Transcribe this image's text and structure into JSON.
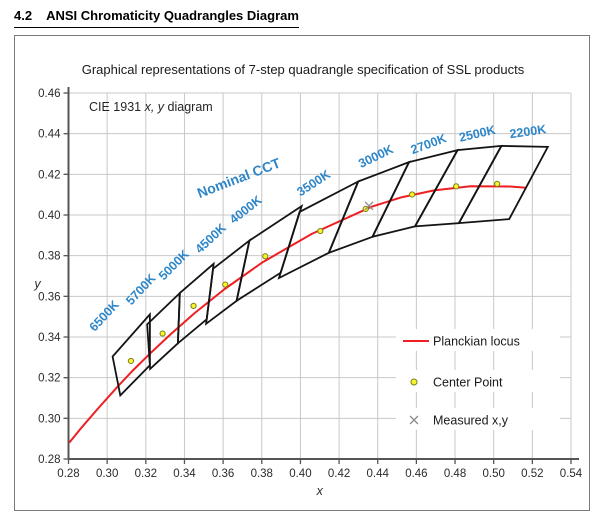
{
  "page": {
    "heading_number": "4.2",
    "heading_title": "ANSI Chromaticity Quadrangles Diagram"
  },
  "chart_data": {
    "type": "scatter",
    "title": "Graphical representations of 7-step quadrangle specification of SSL products",
    "inner_label": "CIE 1931 x, y diagram",
    "xlabel": "x",
    "ylabel": "y",
    "xlim": [
      0.28,
      0.54
    ],
    "ylim": [
      0.28,
      0.46
    ],
    "grid": true,
    "xticks": [
      "0.28",
      "0.30",
      "0.32",
      "0.34",
      "0.36",
      "0.38",
      "0.40",
      "0.42",
      "0.44",
      "0.46",
      "0.48",
      "0.50",
      "0.52",
      "0.54"
    ],
    "yticks": [
      "0.28",
      "0.30",
      "0.32",
      "0.34",
      "0.36",
      "0.38",
      "0.40",
      "0.42",
      "0.44",
      "0.46"
    ],
    "colors": {
      "cct_label_blue": "#2e86c9",
      "locus_red": "#ee1f22",
      "quadrangle_stroke": "#141414",
      "grid": "#c8c8c8",
      "axis": "#555555",
      "tick_text": "#2b2b2b",
      "center_fill": "#f7f72a",
      "center_stroke": "#7d7d1d",
      "measured_gray": "#8c8c8c",
      "title_text": "#1a1a1a"
    },
    "nominal_cct_label": {
      "text": "Nominal CCT",
      "x": 0.369,
      "y": 0.416,
      "rotation": -21
    },
    "quadrangles": [
      {
        "cct": "6500K",
        "vertices": [
          [
            0.3221,
            0.3511
          ],
          [
            0.3028,
            0.3304
          ],
          [
            0.3068,
            0.3113
          ],
          [
            0.3221,
            0.3261
          ]
        ],
        "center": [
          0.3123,
          0.3282
        ],
        "label_x": 0.3,
        "label_y": 0.349,
        "label_rotation": -47
      },
      {
        "cct": "5700K",
        "vertices": [
          [
            0.3376,
            0.3616
          ],
          [
            0.3207,
            0.3462
          ],
          [
            0.3222,
            0.3243
          ],
          [
            0.3366,
            0.3369
          ]
        ],
        "center": [
          0.3287,
          0.3417
        ],
        "label_x": 0.319,
        "label_y": 0.362,
        "label_rotation": -47
      },
      {
        "cct": "5000K",
        "vertices": [
          [
            0.3551,
            0.376
          ],
          [
            0.3376,
            0.3616
          ],
          [
            0.3366,
            0.3369
          ],
          [
            0.3515,
            0.3487
          ]
        ],
        "center": [
          0.3447,
          0.3553
        ],
        "label_x": 0.336,
        "label_y": 0.374,
        "label_rotation": -45
      },
      {
        "cct": "4500K",
        "vertices": [
          [
            0.3736,
            0.3874
          ],
          [
            0.3548,
            0.3736
          ],
          [
            0.3512,
            0.3465
          ],
          [
            0.367,
            0.3578
          ]
        ],
        "center": [
          0.3611,
          0.3658
        ],
        "label_x": 0.355,
        "label_y": 0.387,
        "label_rotation": -43
      },
      {
        "cct": "4000K",
        "vertices": [
          [
            0.4006,
            0.4044
          ],
          [
            0.3736,
            0.3874
          ],
          [
            0.367,
            0.3578
          ],
          [
            0.3898,
            0.3716
          ]
        ],
        "center": [
          0.3818,
          0.3797
        ],
        "label_x": 0.373,
        "label_y": 0.401,
        "label_rotation": -38
      },
      {
        "cct": "3500K",
        "vertices": [
          [
            0.4299,
            0.4165
          ],
          [
            0.3996,
            0.4015
          ],
          [
            0.3889,
            0.369
          ],
          [
            0.4147,
            0.3814
          ]
        ],
        "center": [
          0.4103,
          0.3921
        ],
        "label_x": 0.408,
        "label_y": 0.414,
        "label_rotation": -33
      },
      {
        "cct": "3000K",
        "vertices": [
          [
            0.4562,
            0.426
          ],
          [
            0.4299,
            0.4165
          ],
          [
            0.4147,
            0.3814
          ],
          [
            0.4373,
            0.3893
          ]
        ],
        "center": [
          0.4338,
          0.403
        ],
        "label_x": 0.44,
        "label_y": 0.427,
        "label_rotation": -26
      },
      {
        "cct": "2700K",
        "vertices": [
          [
            0.4813,
            0.4319
          ],
          [
            0.4562,
            0.426
          ],
          [
            0.4373,
            0.3893
          ],
          [
            0.4593,
            0.3944
          ]
        ],
        "center": [
          0.4578,
          0.4101
        ],
        "label_x": 0.467,
        "label_y": 0.433,
        "label_rotation": -20
      },
      {
        "cct": "2500K",
        "vertices": [
          [
            0.504,
            0.434
          ],
          [
            0.4813,
            0.4319
          ],
          [
            0.4593,
            0.3944
          ],
          [
            0.482,
            0.396
          ]
        ],
        "center": [
          0.4806,
          0.4141
        ],
        "label_x": 0.492,
        "label_y": 0.438,
        "label_rotation": -13
      },
      {
        "cct": "2200K",
        "vertices": [
          [
            0.528,
            0.4335
          ],
          [
            0.504,
            0.434
          ],
          [
            0.482,
            0.396
          ],
          [
            0.508,
            0.398
          ]
        ],
        "center": [
          0.5018,
          0.4153
        ],
        "label_x": 0.518,
        "label_y": 0.439,
        "label_rotation": -8
      }
    ],
    "planckian_locus": [
      [
        0.2807,
        0.2884
      ],
      [
        0.2869,
        0.2956
      ],
      [
        0.2952,
        0.3048
      ],
      [
        0.3064,
        0.3166
      ],
      [
        0.3135,
        0.3237
      ],
      [
        0.3221,
        0.3318
      ],
      [
        0.3324,
        0.341
      ],
      [
        0.3451,
        0.3516
      ],
      [
        0.3608,
        0.3636
      ],
      [
        0.3805,
        0.3768
      ],
      [
        0.4059,
        0.3907
      ],
      [
        0.4369,
        0.4041
      ],
      [
        0.4519,
        0.4086
      ],
      [
        0.4691,
        0.4121
      ],
      [
        0.488,
        0.4141
      ],
      [
        0.5085,
        0.414
      ],
      [
        0.516,
        0.4135
      ]
    ],
    "measured_points": [
      [
        0.4355,
        0.4045
      ]
    ],
    "legend": {
      "position": "inside-right",
      "items": [
        {
          "label": "Planckian locus",
          "marker": "line"
        },
        {
          "label": "Center Point",
          "marker": "dot"
        },
        {
          "label": "Measured x,y",
          "marker": "x"
        }
      ]
    }
  }
}
